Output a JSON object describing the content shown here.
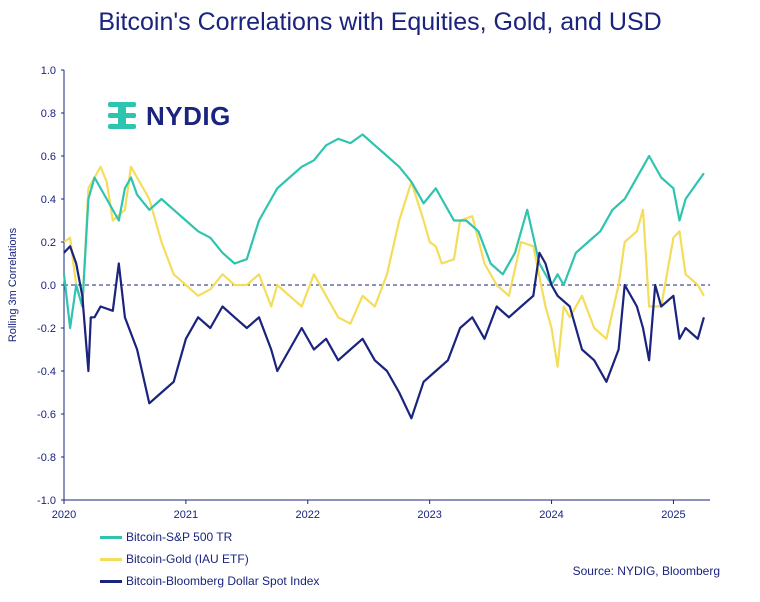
{
  "chart_data": {
    "type": "line",
    "title": "Bitcoin's Correlations with Equities, Gold, and USD",
    "ylabel": "Rolling 3m Correlations",
    "xlabel": "",
    "ylim": [
      -1.0,
      1.0
    ],
    "yticks": [
      "1.0",
      "0.8",
      "0.6",
      "0.4",
      "0.2",
      "0.0",
      "-0.2",
      "-0.4",
      "-0.6",
      "-0.8",
      "-1.0"
    ],
    "xticks": [
      "2020",
      "2021",
      "2022",
      "2023",
      "2024",
      "2025"
    ],
    "xlim": [
      2020.0,
      2025.3
    ],
    "reference_line": {
      "y": 0,
      "style": "dashed"
    },
    "legend_placement": "bottom-left",
    "source": "Source: NYDIG, Bloomberg",
    "series": [
      {
        "name": "Bitcoin-S&P 500 TR",
        "color": "#2ec4b0",
        "x": [
          2020.0,
          2020.05,
          2020.1,
          2020.15,
          2020.2,
          2020.25,
          2020.35,
          2020.45,
          2020.5,
          2020.55,
          2020.6,
          2020.7,
          2020.8,
          2020.9,
          2021.0,
          2021.1,
          2021.2,
          2021.3,
          2021.4,
          2021.5,
          2021.6,
          2021.7,
          2021.75,
          2021.85,
          2021.95,
          2022.05,
          2022.15,
          2022.25,
          2022.35,
          2022.45,
          2022.55,
          2022.65,
          2022.75,
          2022.85,
          2022.95,
          2023.05,
          2023.1,
          2023.2,
          2023.3,
          2023.4,
          2023.5,
          2023.6,
          2023.7,
          2023.8,
          2023.9,
          2024.0,
          2024.05,
          2024.1,
          2024.2,
          2024.3,
          2024.4,
          2024.5,
          2024.6,
          2024.7,
          2024.75,
          2024.8,
          2024.9,
          2025.0,
          2025.05,
          2025.1,
          2025.2,
          2025.25
        ],
        "y": [
          0.05,
          -0.2,
          0.0,
          -0.1,
          0.4,
          0.5,
          0.4,
          0.3,
          0.45,
          0.5,
          0.42,
          0.35,
          0.4,
          0.35,
          0.3,
          0.25,
          0.22,
          0.15,
          0.1,
          0.12,
          0.3,
          0.4,
          0.45,
          0.5,
          0.55,
          0.58,
          0.65,
          0.68,
          0.66,
          0.7,
          0.65,
          0.6,
          0.55,
          0.48,
          0.38,
          0.45,
          0.4,
          0.3,
          0.3,
          0.25,
          0.1,
          0.05,
          0.15,
          0.35,
          0.1,
          0.0,
          0.05,
          0.0,
          0.15,
          0.2,
          0.25,
          0.35,
          0.4,
          0.5,
          0.55,
          0.6,
          0.5,
          0.45,
          0.3,
          0.4,
          0.48,
          0.52
        ]
      },
      {
        "name": "Bitcoin-Gold (IAU ETF)",
        "color": "#f5dd5c",
        "x": [
          2020.0,
          2020.05,
          2020.1,
          2020.15,
          2020.2,
          2020.25,
          2020.3,
          2020.35,
          2020.4,
          2020.5,
          2020.55,
          2020.6,
          2020.7,
          2020.8,
          2020.9,
          2021.0,
          2021.1,
          2021.2,
          2021.3,
          2021.4,
          2021.5,
          2021.6,
          2021.7,
          2021.75,
          2021.85,
          2021.95,
          2022.05,
          2022.15,
          2022.25,
          2022.35,
          2022.45,
          2022.55,
          2022.65,
          2022.75,
          2022.85,
          2022.95,
          2023.0,
          2023.05,
          2023.1,
          2023.2,
          2023.25,
          2023.35,
          2023.45,
          2023.55,
          2023.65,
          2023.75,
          2023.85,
          2023.95,
          2024.0,
          2024.05,
          2024.1,
          2024.15,
          2024.25,
          2024.35,
          2024.45,
          2024.55,
          2024.6,
          2024.7,
          2024.75,
          2024.8,
          2024.9,
          2025.0,
          2025.05,
          2025.1,
          2025.2,
          2025.25
        ],
        "y": [
          0.2,
          0.22,
          0.0,
          -0.1,
          0.45,
          0.5,
          0.55,
          0.48,
          0.3,
          0.35,
          0.55,
          0.5,
          0.4,
          0.2,
          0.05,
          0.0,
          -0.05,
          -0.02,
          0.05,
          0.0,
          0.0,
          0.05,
          -0.1,
          0.0,
          -0.05,
          -0.1,
          0.05,
          -0.05,
          -0.15,
          -0.18,
          -0.05,
          -0.1,
          0.05,
          0.3,
          0.48,
          0.3,
          0.2,
          0.18,
          0.1,
          0.12,
          0.3,
          0.32,
          0.1,
          0.0,
          -0.05,
          0.2,
          0.18,
          -0.1,
          -0.2,
          -0.38,
          -0.1,
          -0.15,
          -0.05,
          -0.2,
          -0.25,
          0.0,
          0.2,
          0.25,
          0.35,
          -0.1,
          -0.1,
          0.22,
          0.25,
          0.05,
          0.0,
          -0.05
        ]
      },
      {
        "name": "Bitcoin-Bloomberg Dollar Spot Index",
        "color": "#1a237e",
        "x": [
          2020.0,
          2020.05,
          2020.1,
          2020.15,
          2020.2,
          2020.22,
          2020.25,
          2020.3,
          2020.4,
          2020.45,
          2020.5,
          2020.6,
          2020.7,
          2020.8,
          2020.9,
          2021.0,
          2021.1,
          2021.2,
          2021.3,
          2021.4,
          2021.5,
          2021.6,
          2021.7,
          2021.75,
          2021.85,
          2021.95,
          2022.05,
          2022.15,
          2022.25,
          2022.35,
          2022.45,
          2022.55,
          2022.65,
          2022.75,
          2022.85,
          2022.95,
          2023.05,
          2023.15,
          2023.25,
          2023.35,
          2023.45,
          2023.55,
          2023.65,
          2023.75,
          2023.85,
          2023.9,
          2023.95,
          2024.0,
          2024.05,
          2024.15,
          2024.25,
          2024.35,
          2024.45,
          2024.55,
          2024.6,
          2024.7,
          2024.75,
          2024.8,
          2024.85,
          2024.9,
          2025.0,
          2025.05,
          2025.1,
          2025.2,
          2025.25
        ],
        "y": [
          0.15,
          0.18,
          0.1,
          -0.05,
          -0.4,
          -0.15,
          -0.15,
          -0.1,
          -0.12,
          0.1,
          -0.15,
          -0.3,
          -0.55,
          -0.5,
          -0.45,
          -0.25,
          -0.15,
          -0.2,
          -0.1,
          -0.15,
          -0.2,
          -0.15,
          -0.3,
          -0.4,
          -0.3,
          -0.2,
          -0.3,
          -0.25,
          -0.35,
          -0.3,
          -0.25,
          -0.35,
          -0.4,
          -0.5,
          -0.62,
          -0.45,
          -0.4,
          -0.35,
          -0.2,
          -0.15,
          -0.25,
          -0.1,
          -0.15,
          -0.1,
          -0.05,
          0.15,
          0.1,
          0.0,
          -0.05,
          -0.1,
          -0.3,
          -0.35,
          -0.45,
          -0.3,
          0.0,
          -0.1,
          -0.2,
          -0.35,
          0.0,
          -0.1,
          -0.05,
          -0.25,
          -0.2,
          -0.25,
          -0.15
        ]
      }
    ]
  },
  "logo": {
    "text": "NYDIG",
    "color": "#2ec4b0"
  }
}
